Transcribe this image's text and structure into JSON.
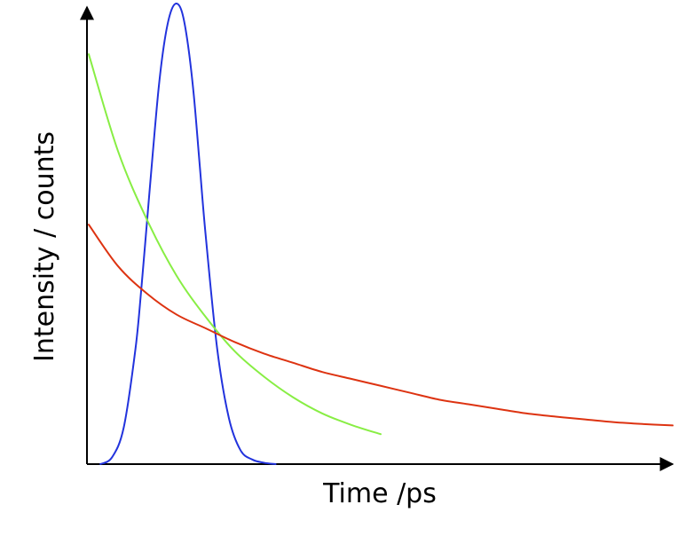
{
  "chart_data": {
    "type": "line",
    "title": "",
    "xlabel": "Time /ps",
    "ylabel": "Intensity / counts",
    "grid": false,
    "legend": "none",
    "xlim": [
      0,
      100
    ],
    "ylim": [
      0,
      100
    ],
    "series": [
      {
        "color": "#2233dd",
        "x": [
          2,
          4,
          6,
          8,
          9,
          10,
          11,
          12,
          13,
          14,
          15,
          16,
          17,
          18,
          19,
          20,
          22,
          24,
          26,
          28,
          30,
          32
        ],
        "y": [
          0,
          1.5,
          8,
          25,
          38,
          53,
          68,
          82,
          92,
          98,
          100,
          98,
          91,
          80,
          65,
          50,
          25,
          10,
          3,
          1,
          0.3,
          0
        ]
      },
      {
        "color": "#88ee44",
        "x": [
          0,
          5,
          10,
          15,
          20,
          25,
          30,
          35,
          40,
          45,
          50
        ],
        "y": [
          89,
          68,
          53,
          41,
          32,
          24.5,
          19,
          14.5,
          11,
          8.5,
          6.5
        ]
      },
      {
        "color": "#dd3311",
        "x": [
          0,
          5,
          10,
          15,
          20,
          25,
          30,
          35,
          40,
          45,
          50,
          55,
          60,
          65,
          70,
          75,
          80,
          85,
          90,
          95,
          100
        ],
        "y": [
          52,
          43,
          37,
          32.5,
          29.5,
          26.5,
          24,
          22,
          20,
          18.5,
          17,
          15.5,
          14,
          13,
          12,
          11,
          10.3,
          9.7,
          9.1,
          8.7,
          8.4
        ]
      }
    ]
  }
}
